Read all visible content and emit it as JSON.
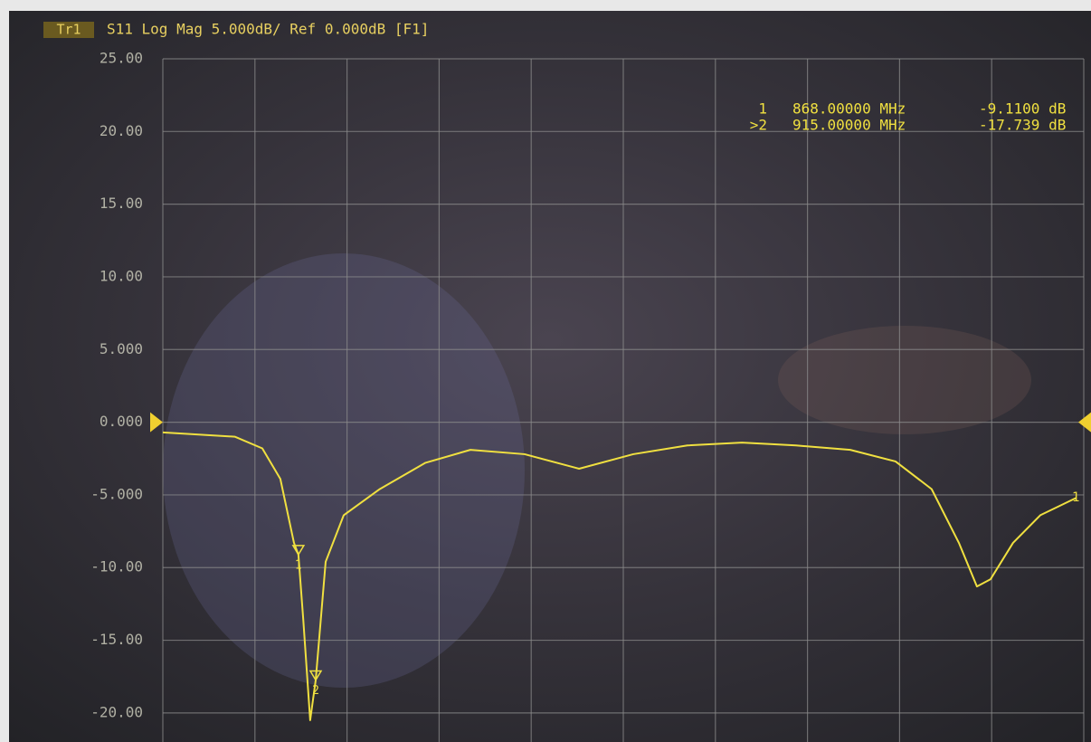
{
  "chart_data": {
    "type": "line",
    "trace_label": "Tr1",
    "title": "S11 Log Mag 5.000dB/ Ref 0.000dB [F1]",
    "right_label": "1",
    "xlim": [
      500,
      3000
    ],
    "ylim": [
      -22,
      25
    ],
    "yticks": [
      {
        "value": 25,
        "label": "25.00"
      },
      {
        "value": 20,
        "label": "20.00"
      },
      {
        "value": 15,
        "label": "15.00"
      },
      {
        "value": 10,
        "label": "10.00"
      },
      {
        "value": 5,
        "label": "5.000"
      },
      {
        "value": 0,
        "label": "0.000"
      },
      {
        "value": -5,
        "label": "-5.000"
      },
      {
        "value": -10,
        "label": "-10.00"
      },
      {
        "value": -15,
        "label": "-15.00"
      },
      {
        "value": -20,
        "label": "-20.00"
      }
    ],
    "grid": true,
    "series": [
      {
        "name": "S11",
        "color": "#f0e040",
        "x": [
          500,
          696,
          770,
          819,
          856,
          868,
          881,
          900,
          915,
          942,
          991,
          1089,
          1212,
          1335,
          1482,
          1630,
          1777,
          1924,
          2072,
          2219,
          2366,
          2489,
          2587,
          2661,
          2710,
          2747,
          2808,
          2882,
          2980
        ],
        "values": [
          -0.7,
          -1.0,
          -1.8,
          -3.9,
          -8.3,
          -9.11,
          -13.5,
          -20.5,
          -17.74,
          -9.6,
          -6.4,
          -4.6,
          -2.8,
          -1.9,
          -2.2,
          -3.2,
          -2.2,
          -1.6,
          -1.4,
          -1.6,
          -1.9,
          -2.7,
          -4.6,
          -8.3,
          -11.3,
          -10.8,
          -8.3,
          -6.4,
          -5.2
        ]
      }
    ],
    "markers": [
      {
        "label": "1",
        "x": 868,
        "y": -9.11,
        "readout": [
          "1",
          "868.00000 MHz",
          "-9.1100 dB"
        ]
      },
      {
        "label": "2",
        "x": 915,
        "y": -17.739,
        "readout": [
          ">2",
          "915.00000 MHz",
          "-17.739 dB"
        ]
      }
    ]
  }
}
